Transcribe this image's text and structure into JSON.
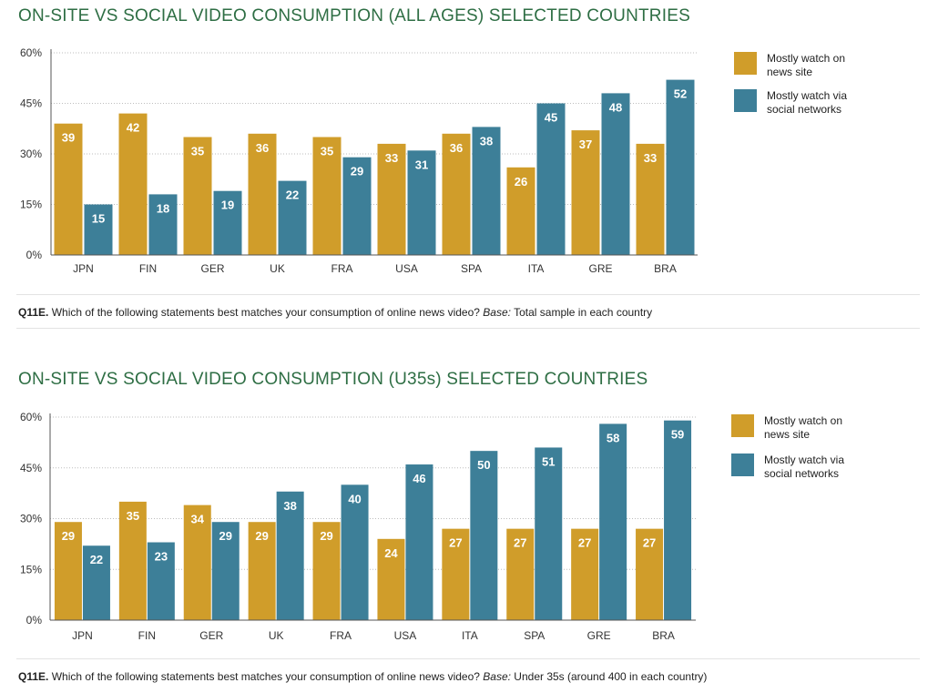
{
  "colors": {
    "news_site": "#d09d2a",
    "social": "#3d7f98",
    "title": "#2e6e44"
  },
  "charts": [
    {
      "title": "ON-SITE VS SOCIAL VIDEO CONSUMPTION (ALL AGES) SELECTED COUNTRIES",
      "note_bold": "Q11E.",
      "note_text": " Which of the following statements best matches your consumption of online news video? ",
      "note_base_label": "Base:",
      "note_base_text": " Total sample in each country",
      "legend": [
        "Mostly watch on news site",
        "Mostly watch via social networks"
      ]
    },
    {
      "title": "ON-SITE VS SOCIAL VIDEO CONSUMPTION (U35s) SELECTED COUNTRIES",
      "note_bold": "Q11E.",
      "note_text": " Which of the following statements best matches your consumption of online news video? ",
      "note_base_label": "Base:",
      "note_base_text": " Under 35s (around 400 in each country)",
      "legend": [
        "Mostly watch on news site",
        "Mostly watch via social networks"
      ]
    }
  ],
  "chart_data": [
    {
      "type": "bar",
      "title": "ON-SITE VS SOCIAL VIDEO CONSUMPTION (ALL AGES) SELECTED COUNTRIES",
      "categories": [
        "JPN",
        "FIN",
        "GER",
        "UK",
        "FRA",
        "USA",
        "SPA",
        "ITA",
        "GRE",
        "BRA"
      ],
      "series": [
        {
          "name": "Mostly watch on news site",
          "values": [
            39,
            42,
            35,
            36,
            35,
            33,
            36,
            26,
            37,
            33
          ]
        },
        {
          "name": "Mostly watch via social networks",
          "values": [
            15,
            18,
            19,
            22,
            29,
            31,
            38,
            45,
            48,
            52
          ]
        }
      ],
      "yticks": [
        "0%",
        "15%",
        "30%",
        "45%",
        "60%"
      ],
      "ylim": [
        0,
        60
      ],
      "grid": true,
      "legend": "right"
    },
    {
      "type": "bar",
      "title": "ON-SITE VS SOCIAL VIDEO CONSUMPTION (U35s) SELECTED COUNTRIES",
      "categories": [
        "JPN",
        "FIN",
        "GER",
        "UK",
        "FRA",
        "USA",
        "ITA",
        "SPA",
        "GRE",
        "BRA"
      ],
      "series": [
        {
          "name": "Mostly watch on news site",
          "values": [
            29,
            35,
            34,
            29,
            29,
            24,
            27,
            27,
            27,
            27
          ]
        },
        {
          "name": "Mostly watch via social networks",
          "values": [
            22,
            23,
            29,
            38,
            40,
            46,
            50,
            51,
            58,
            59
          ]
        }
      ],
      "yticks": [
        "0%",
        "15%",
        "30%",
        "45%",
        "60%"
      ],
      "ylim": [
        0,
        60
      ],
      "grid": true,
      "legend": "right"
    }
  ]
}
